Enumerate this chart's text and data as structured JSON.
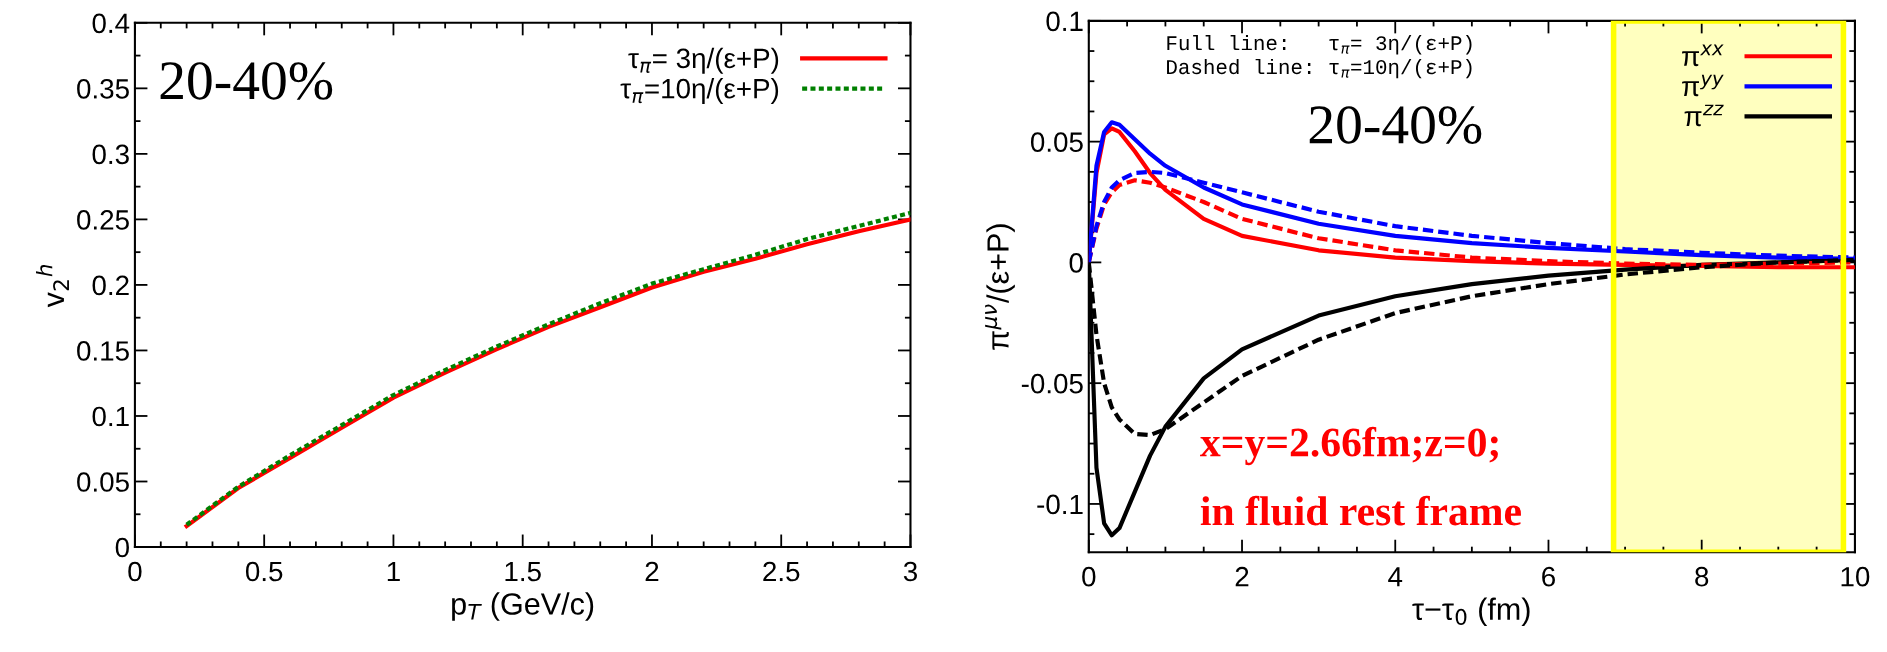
{
  "chart_data": [
    {
      "type": "line",
      "xlabel": "p$_{T}$ (GeV/c)",
      "ylabel": "v$_{2}$$^{h}$",
      "xlim": [
        0,
        3
      ],
      "ylim": [
        0,
        0.4
      ],
      "xticks": [
        0,
        0.5,
        1,
        1.5,
        2,
        2.5,
        3
      ],
      "yticks": [
        0,
        0.05,
        0.1,
        0.15,
        0.2,
        0.25,
        0.3,
        0.35,
        0.4
      ],
      "grid": false,
      "legend": "top right",
      "annotations": [
        "20-40%"
      ],
      "x": [
        0.2,
        0.4,
        0.6,
        0.8,
        1.0,
        1.2,
        1.4,
        1.6,
        1.8,
        2.0,
        2.2,
        2.4,
        2.6,
        2.8,
        3.0
      ],
      "series": [
        {
          "name": "τ$_{π}$= 3η/(ε+P)",
          "color": "#ff0000",
          "line_style": "solid",
          "values": [
            0.016,
            0.045,
            0.068,
            0.091,
            0.114,
            0.133,
            0.151,
            0.168,
            0.183,
            0.198,
            0.21,
            0.22,
            0.231,
            0.241,
            0.25
          ]
        },
        {
          "name": "τ$_{π}$=10η/(ε+P)",
          "color": "#008000",
          "line_style": "dotted",
          "values": [
            0.017,
            0.046,
            0.07,
            0.093,
            0.116,
            0.135,
            0.153,
            0.17,
            0.186,
            0.201,
            0.212,
            0.223,
            0.235,
            0.245,
            0.255
          ]
        }
      ]
    },
    {
      "type": "line",
      "xlabel": "τ−τ$_{0}$ (fm)",
      "ylabel": "π$^{μν}$/(ε+P)",
      "xlim": [
        0,
        10
      ],
      "ylim": [
        -0.12,
        0.1
      ],
      "xticks": [
        0,
        2,
        4,
        6,
        8,
        10
      ],
      "yticks": [
        -0.1,
        -0.05,
        0,
        0.05,
        0.1
      ],
      "grid": false,
      "legend": "top right",
      "annotations": [
        "Full line:   τ$_{π}$= 3η/(ε+P)",
        "Dashed line: τ$_{π}$=10η/(ε+P)",
        "20-40%",
        "x=y=2.66fm;z=0;",
        "in fluid rest frame"
      ],
      "bands": [
        {
          "axis": "x",
          "from": 6.85,
          "to": 9.85,
          "color": "#ffff00"
        }
      ],
      "x": [
        0,
        0.1,
        0.2,
        0.3,
        0.4,
        0.6,
        0.8,
        1.0,
        1.5,
        2,
        3,
        4,
        5,
        6,
        7,
        8,
        9,
        10
      ],
      "series": [
        {
          "name": "π$^{xx}$",
          "color": "#ff0000",
          "line_style": "solid",
          "values": [
            0,
            0.037,
            0.053,
            0.0555,
            0.054,
            0.046,
            0.037,
            0.03,
            0.018,
            0.011,
            0.005,
            0.002,
            0.0005,
            -0.0005,
            -0.001,
            -0.0015,
            -0.002,
            -0.002
          ]
        },
        {
          "name": "π$^{yy}$",
          "color": "#0000ff",
          "line_style": "solid",
          "values": [
            0,
            0.04,
            0.054,
            0.058,
            0.057,
            0.051,
            0.045,
            0.04,
            0.031,
            0.024,
            0.016,
            0.011,
            0.008,
            0.006,
            0.0045,
            0.003,
            0.002,
            0.0015
          ]
        },
        {
          "name": "π$^{zz}$",
          "color": "#000000",
          "line_style": "solid",
          "values": [
            0,
            -0.085,
            -0.108,
            -0.113,
            -0.11,
            -0.095,
            -0.08,
            -0.068,
            -0.048,
            -0.036,
            -0.022,
            -0.014,
            -0.009,
            -0.0055,
            -0.003,
            -0.001,
            0,
            0.001
          ]
        },
        {
          "color": "#ff0000",
          "line_style": "dashed",
          "values": [
            0,
            0.014,
            0.024,
            0.029,
            0.032,
            0.034,
            0.033,
            0.031,
            0.025,
            0.018,
            0.01,
            0.005,
            0.002,
            0.0005,
            -0.0005,
            -0.001,
            -0.0005,
            0
          ]
        },
        {
          "color": "#0000ff",
          "line_style": "dashed",
          "values": [
            0,
            0.015,
            0.025,
            0.031,
            0.034,
            0.037,
            0.0375,
            0.037,
            0.033,
            0.029,
            0.021,
            0.015,
            0.011,
            0.008,
            0.0055,
            0.004,
            0.0028,
            0.002
          ]
        },
        {
          "color": "#000000",
          "line_style": "dashed",
          "values": [
            0,
            -0.03,
            -0.05,
            -0.06,
            -0.065,
            -0.071,
            -0.0715,
            -0.069,
            -0.058,
            -0.047,
            -0.032,
            -0.021,
            -0.014,
            -0.009,
            -0.005,
            -0.002,
            0,
            0.001
          ]
        }
      ]
    }
  ]
}
